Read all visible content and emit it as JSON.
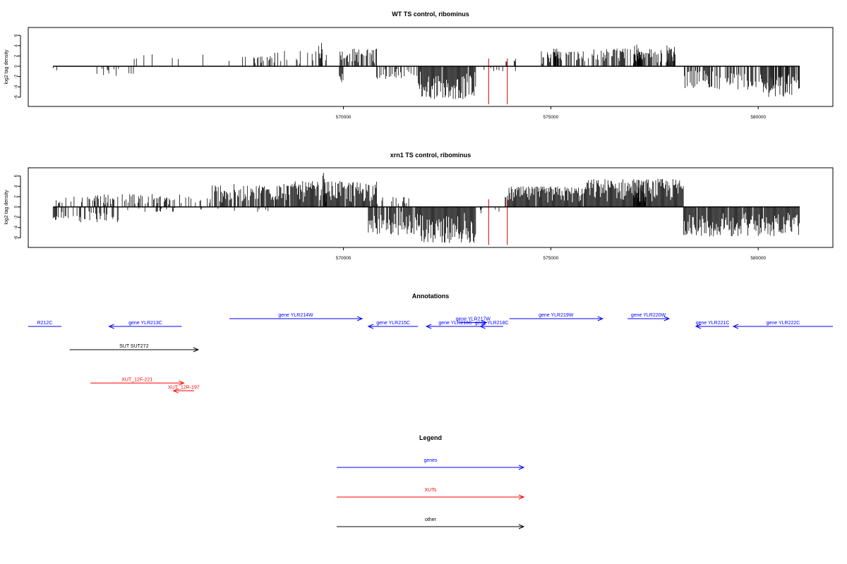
{
  "colors": {
    "gene": "#0000ff",
    "xut": "#ff0000",
    "other": "#000000",
    "marker": "#cc0000"
  },
  "x_axis": {
    "domain": [
      562400,
      581800
    ],
    "ticks": [
      570000,
      575000,
      580000
    ],
    "tick_labels": [
      "570000",
      "575000",
      "580000"
    ]
  },
  "chart_data": [
    {
      "type": "bar",
      "title": "WT TS control, ribominus",
      "ylabel": "log2 tag density",
      "ylim": [
        -7.5,
        7.5
      ],
      "y_ticks": [
        -6,
        -4,
        -2,
        0,
        2,
        4,
        6
      ],
      "y_tick_labels": [
        "-6",
        "-4",
        "-2",
        "0",
        "2",
        "4",
        "6"
      ],
      "markers": [
        573500,
        573950
      ],
      "baseline_range": [
        563000,
        581000
      ],
      "pos_regions": [
        {
          "range": [
            563000,
            563100
          ],
          "max": 1.5,
          "density": 0.3
        },
        {
          "range": [
            564000,
            567800
          ],
          "max": 3.0,
          "density": 0.08
        },
        {
          "range": [
            567800,
            568200
          ],
          "max": 2.0,
          "density": 0.6
        },
        {
          "range": [
            568200,
            569600
          ],
          "max": 3.0,
          "density": 0.35
        },
        {
          "range": [
            569400,
            569500
          ],
          "max": 5.0,
          "density": 1.0
        },
        {
          "range": [
            569900,
            570800
          ],
          "max": 3.5,
          "density": 0.7
        },
        {
          "range": [
            573900,
            574200
          ],
          "max": 1.5,
          "density": 0.3
        },
        {
          "range": [
            574700,
            576000
          ],
          "max": 3.0,
          "density": 0.45
        },
        {
          "range": [
            575000,
            575200
          ],
          "max": 3.5,
          "density": 0.8
        },
        {
          "range": [
            576000,
            578000
          ],
          "max": 3.5,
          "density": 0.65
        },
        {
          "range": [
            577000,
            577200
          ],
          "max": 4.5,
          "density": 1.0
        },
        {
          "range": [
            577800,
            578000
          ],
          "max": 4.3,
          "density": 1.0
        }
      ],
      "neg_regions": [
        {
          "range": [
            563000,
            563100
          ],
          "max": 1.0,
          "density": 0.3
        },
        {
          "range": [
            564000,
            565000
          ],
          "max": 2.0,
          "density": 0.2
        },
        {
          "range": [
            569900,
            570000
          ],
          "max": 3.5,
          "density": 1.0
        },
        {
          "range": [
            570800,
            571800
          ],
          "max": 2.5,
          "density": 0.5
        },
        {
          "range": [
            571800,
            573200
          ],
          "max": 6.5,
          "density": 0.95
        },
        {
          "range": [
            573300,
            574200
          ],
          "max": 1.0,
          "density": 0.15
        },
        {
          "range": [
            578200,
            581000
          ],
          "max": 4.5,
          "density": 0.6
        },
        {
          "range": [
            580000,
            581000
          ],
          "max": 6.0,
          "density": 0.7
        }
      ]
    },
    {
      "type": "bar",
      "title": "xrn1 TS control, ribominus",
      "ylabel": "log2 tag density",
      "ylim": [
        -7.5,
        7.5
      ],
      "y_ticks": [
        -6,
        -4,
        -2,
        0,
        2,
        4,
        6
      ],
      "y_tick_labels": [
        "-6",
        "-4",
        "-2",
        "0",
        "2",
        "4",
        "6"
      ],
      "markers": [
        573500,
        573950
      ],
      "baseline_range": [
        563000,
        581000
      ],
      "pos_regions": [
        {
          "range": [
            563000,
            564000
          ],
          "max": 2.0,
          "density": 0.25
        },
        {
          "range": [
            564000,
            566800
          ],
          "max": 2.5,
          "density": 0.45
        },
        {
          "range": [
            566800,
            568800
          ],
          "max": 4.5,
          "density": 0.8
        },
        {
          "range": [
            568800,
            570800
          ],
          "max": 5.0,
          "density": 0.95
        },
        {
          "range": [
            569500,
            569600
          ],
          "max": 6.8,
          "density": 1.0
        },
        {
          "range": [
            570800,
            571600
          ],
          "max": 2.0,
          "density": 0.35
        },
        {
          "range": [
            573900,
            575800
          ],
          "max": 4.0,
          "density": 0.95
        },
        {
          "range": [
            575800,
            578200
          ],
          "max": 5.5,
          "density": 1.0
        },
        {
          "range": [
            577000,
            577300
          ],
          "max": 6.2,
          "density": 1.0
        }
      ],
      "neg_regions": [
        {
          "range": [
            563000,
            564600
          ],
          "max": 3.0,
          "density": 0.45
        },
        {
          "range": [
            564600,
            568500
          ],
          "max": 1.0,
          "density": 0.1
        },
        {
          "range": [
            570600,
            571800
          ],
          "max": 5.5,
          "density": 0.85
        },
        {
          "range": [
            571800,
            573200
          ],
          "max": 7.0,
          "density": 1.0
        },
        {
          "range": [
            573300,
            573800
          ],
          "max": 1.5,
          "density": 0.2
        },
        {
          "range": [
            578200,
            581000
          ],
          "max": 5.8,
          "density": 0.95
        }
      ]
    }
  ],
  "annotations": {
    "title": "Annotations",
    "items": [
      {
        "label": "R212C",
        "start": 563200,
        "end": 562400,
        "row": 0,
        "type": "gene",
        "dir": "left"
      },
      {
        "label": "gene YLR213C",
        "start": 566100,
        "end": 564350,
        "row": 0,
        "type": "gene",
        "dir": "left"
      },
      {
        "label": "gene YLR214W",
        "start": 567250,
        "end": 570450,
        "row": -1,
        "type": "gene",
        "dir": "right"
      },
      {
        "label": "gene YLR215C",
        "start": 571800,
        "end": 570600,
        "row": 0,
        "type": "gene",
        "dir": "left"
      },
      {
        "label": "gene YLR216C",
        "start": 573400,
        "end": 572000,
        "row": 0,
        "type": "gene",
        "dir": "left"
      },
      {
        "label": "gene YLR217W",
        "start": 572800,
        "end": 573450,
        "row": -0.5,
        "type": "gene",
        "dir": "right"
      },
      {
        "label": "gene YLR218C",
        "start": 573850,
        "end": 573300,
        "row": 0,
        "type": "gene",
        "dir": "left"
      },
      {
        "label": "gene YLR219W",
        "start": 574000,
        "end": 576250,
        "row": -1,
        "type": "gene",
        "dir": "right"
      },
      {
        "label": "gene YLR220W",
        "start": 576850,
        "end": 577850,
        "row": -1,
        "type": "gene",
        "dir": "right"
      },
      {
        "label": "gene YLR221C",
        "start": 579300,
        "end": 578500,
        "row": 0,
        "type": "gene",
        "dir": "left"
      },
      {
        "label": "gene YLR222C",
        "start": 581800,
        "end": 579400,
        "row": 0,
        "type": "gene",
        "dir": "left"
      },
      {
        "label": "SUT SUT272",
        "start": 563400,
        "end": 566500,
        "row": 3,
        "type": "other",
        "dir": "right"
      },
      {
        "label": "XUT_12F-221",
        "start": 563900,
        "end": 566150,
        "row": 7.3,
        "type": "xut",
        "dir": "right"
      },
      {
        "label": "XUT_12R-197",
        "start": 566400,
        "end": 565900,
        "row": 8.3,
        "type": "xut",
        "dir": "left"
      }
    ]
  },
  "legend": {
    "title": "Legend",
    "items": [
      {
        "label": "genes",
        "type": "gene"
      },
      {
        "label": "XUTs",
        "type": "xut"
      },
      {
        "label": "other",
        "type": "other"
      }
    ]
  }
}
